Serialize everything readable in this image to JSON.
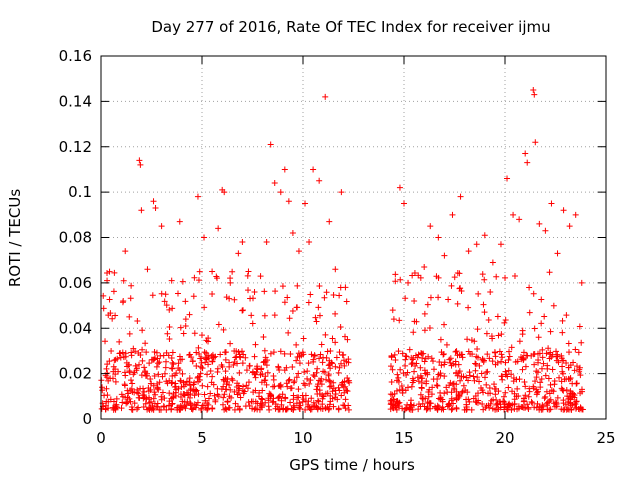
{
  "chart_data": {
    "type": "scatter",
    "title": "Day 277 of 2016, Rate Of TEC Index for receiver ijmu",
    "xlabel": "GPS time / hours",
    "ylabel": "ROTI / TECUs",
    "xlim": [
      0,
      25
    ],
    "ylim": [
      0,
      0.16
    ],
    "xticks": [
      0,
      5,
      10,
      15,
      20,
      25
    ],
    "xtick_labels": [
      "0",
      "5",
      "10",
      "15",
      "20",
      "25"
    ],
    "yticks": [
      0,
      0.02,
      0.04,
      0.06,
      0.08,
      0.1,
      0.12,
      0.14,
      0.16
    ],
    "ytick_labels": [
      "0",
      "0.02",
      "0.04",
      "0.06",
      "0.08",
      "0.1",
      "0.12",
      "0.14",
      "0.16"
    ],
    "grid": true,
    "marker": "+",
    "marker_color": "#ff0000",
    "series": [
      {
        "name": "ROTI",
        "points": [
          [
            0.05,
            0.014
          ],
          [
            0.3,
            0.061
          ],
          [
            0.5,
            0.03
          ],
          [
            0.7,
            0.022
          ],
          [
            0.9,
            0.034
          ],
          [
            1.1,
            0.052
          ],
          [
            1.2,
            0.074
          ],
          [
            1.4,
            0.045
          ],
          [
            1.6,
            0.031
          ],
          [
            1.9,
            0.114
          ],
          [
            1.95,
            0.112
          ],
          [
            2.0,
            0.092
          ],
          [
            2.3,
            0.066
          ],
          [
            2.6,
            0.096
          ],
          [
            2.7,
            0.093
          ],
          [
            3.0,
            0.085
          ],
          [
            3.2,
            0.055
          ],
          [
            3.5,
            0.061
          ],
          [
            3.9,
            0.087
          ],
          [
            4.2,
            0.044
          ],
          [
            4.8,
            0.098
          ],
          [
            5.1,
            0.08
          ],
          [
            5.5,
            0.065
          ],
          [
            5.8,
            0.084
          ],
          [
            6.0,
            0.101
          ],
          [
            6.1,
            0.1
          ],
          [
            6.4,
            0.06
          ],
          [
            6.8,
            0.073
          ],
          [
            7.0,
            0.078
          ],
          [
            7.3,
            0.065
          ],
          [
            7.6,
            0.056
          ],
          [
            7.9,
            0.063
          ],
          [
            8.2,
            0.078
          ],
          [
            8.4,
            0.121
          ],
          [
            8.6,
            0.104
          ],
          [
            8.9,
            0.1
          ],
          [
            9.1,
            0.11
          ],
          [
            9.3,
            0.096
          ],
          [
            9.5,
            0.082
          ],
          [
            9.8,
            0.074
          ],
          [
            10.1,
            0.095
          ],
          [
            10.3,
            0.078
          ],
          [
            10.5,
            0.11
          ],
          [
            10.8,
            0.105
          ],
          [
            11.1,
            0.142
          ],
          [
            11.3,
            0.087
          ],
          [
            11.6,
            0.066
          ],
          [
            11.9,
            0.1
          ],
          [
            12.1,
            0.058
          ],
          [
            12.2,
            0.035
          ],
          [
            14.5,
            0.044
          ],
          [
            14.8,
            0.102
          ],
          [
            15.0,
            0.095
          ],
          [
            15.2,
            0.06
          ],
          [
            15.5,
            0.052
          ],
          [
            16.0,
            0.067
          ],
          [
            16.3,
            0.085
          ],
          [
            16.7,
            0.08
          ],
          [
            17.0,
            0.072
          ],
          [
            17.4,
            0.09
          ],
          [
            17.8,
            0.098
          ],
          [
            18.2,
            0.074
          ],
          [
            18.6,
            0.077
          ],
          [
            19.0,
            0.081
          ],
          [
            19.4,
            0.069
          ],
          [
            19.8,
            0.077
          ],
          [
            20.1,
            0.106
          ],
          [
            20.4,
            0.09
          ],
          [
            20.7,
            0.088
          ],
          [
            21.0,
            0.117
          ],
          [
            21.1,
            0.113
          ],
          [
            21.4,
            0.145
          ],
          [
            21.45,
            0.143
          ],
          [
            21.5,
            0.122
          ],
          [
            21.7,
            0.086
          ],
          [
            22.0,
            0.083
          ],
          [
            22.3,
            0.095
          ],
          [
            22.6,
            0.073
          ],
          [
            22.9,
            0.092
          ],
          [
            23.2,
            0.085
          ],
          [
            23.5,
            0.09
          ],
          [
            23.8,
            0.06
          ]
        ]
      }
    ],
    "dense_band": {
      "note": "dense red '+' cloud of ROTI samples",
      "segments": [
        {
          "x_start": 0,
          "x_end": 12.3,
          "y_min": 0.004,
          "y_max": 0.03
        },
        {
          "x_start": 14.3,
          "x_end": 23.9,
          "y_min": 0.004,
          "y_max": 0.03
        }
      ]
    }
  }
}
